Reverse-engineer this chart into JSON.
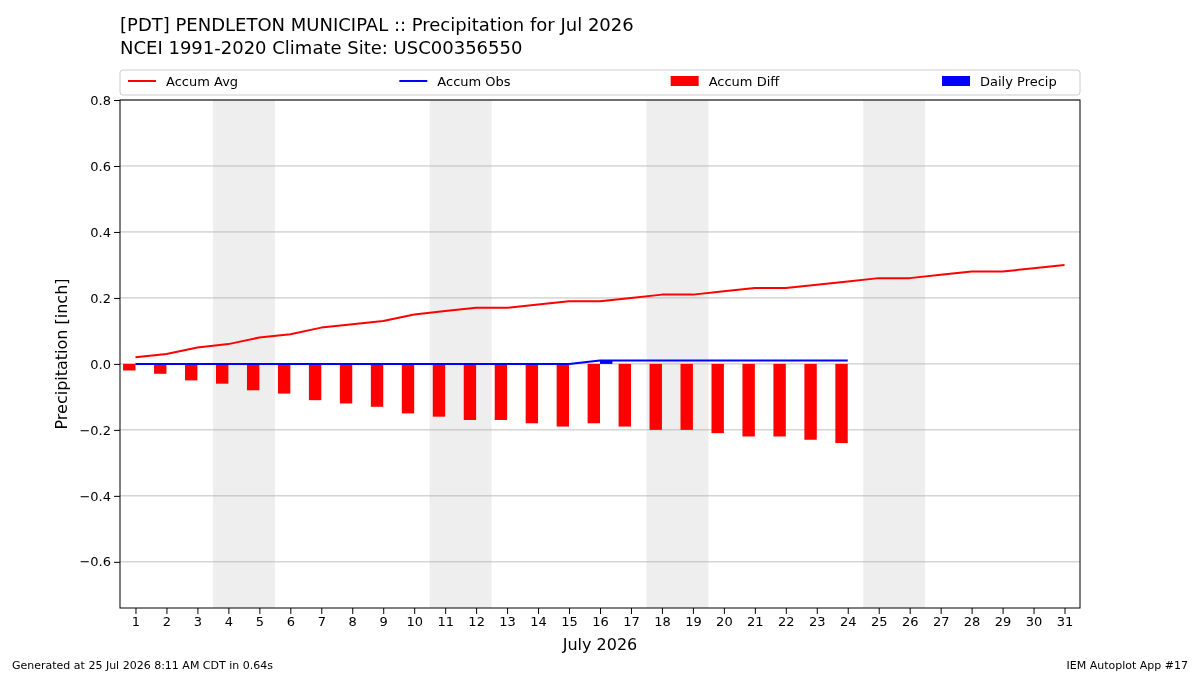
{
  "chart_data": {
    "type": "line",
    "title": "[PDT] PENDLETON MUNICIPAL :: Precipitation for Jul 2026",
    "subtitle": "NCEI 1991-2020 Climate Site: USC00356550",
    "xlabel": "July 2026",
    "ylabel": "Precipitation [inch]",
    "x": [
      1,
      2,
      3,
      4,
      5,
      6,
      7,
      8,
      9,
      10,
      11,
      12,
      13,
      14,
      15,
      16,
      17,
      18,
      19,
      20,
      21,
      22,
      23,
      24,
      25,
      26,
      27,
      28,
      29,
      30,
      31
    ],
    "series": [
      {
        "name": "Accum Avg",
        "color": "#ff0000",
        "values": [
          0.02,
          0.03,
          0.05,
          0.06,
          0.08,
          0.09,
          0.11,
          0.12,
          0.13,
          0.15,
          0.16,
          0.17,
          0.17,
          0.18,
          0.19,
          0.19,
          0.2,
          0.21,
          0.21,
          0.22,
          0.23,
          0.23,
          0.24,
          0.25,
          0.26,
          0.26,
          0.27,
          0.28,
          0.28,
          0.29,
          0.3
        ]
      },
      {
        "name": "Accum Obs",
        "color": "#0000ff",
        "values": [
          0,
          0,
          0,
          0,
          0,
          0,
          0,
          0,
          0,
          0,
          0,
          0,
          0,
          0,
          0,
          0.01,
          0.01,
          0.01,
          0.01,
          0.01,
          0.01,
          0.01,
          0.01,
          0.01,
          null,
          null,
          null,
          null,
          null,
          null,
          null
        ]
      },
      {
        "name": "Accum Diff",
        "type": "bar",
        "color": "#ff0000",
        "values": [
          -0.02,
          -0.03,
          -0.05,
          -0.06,
          -0.08,
          -0.09,
          -0.11,
          -0.12,
          -0.13,
          -0.15,
          -0.16,
          -0.17,
          -0.17,
          -0.18,
          -0.19,
          -0.18,
          -0.19,
          -0.2,
          -0.2,
          -0.21,
          -0.22,
          -0.22,
          -0.23,
          -0.24,
          null,
          null,
          null,
          null,
          null,
          null,
          null
        ]
      },
      {
        "name": "Daily Precip",
        "type": "bar",
        "color": "#0000ff",
        "values": [
          0,
          0,
          0,
          0,
          0,
          0,
          0,
          0,
          0,
          0,
          0,
          0,
          0,
          0,
          0,
          0.01,
          0,
          0,
          0,
          0,
          0,
          0,
          0,
          0,
          null,
          null,
          null,
          null,
          null,
          null,
          null
        ]
      }
    ],
    "xlim": [
      0.5,
      31.5
    ],
    "xticks": [
      1,
      2,
      3,
      4,
      5,
      6,
      7,
      8,
      9,
      10,
      11,
      12,
      13,
      14,
      15,
      16,
      17,
      18,
      19,
      20,
      21,
      22,
      23,
      24,
      25,
      26,
      27,
      28,
      29,
      30,
      31
    ],
    "ylim": [
      -0.74,
      0.8
    ],
    "yticks": [
      {
        "value": -0.6,
        "label": "−0.6"
      },
      {
        "value": -0.4,
        "label": "−0.4"
      },
      {
        "value": -0.2,
        "label": "−0.2"
      },
      {
        "value": 0,
        "label": "0.0"
      },
      {
        "value": 0.2,
        "label": "0.2"
      },
      {
        "value": 0.4,
        "label": "0.4"
      },
      {
        "value": 0.6,
        "label": "0.6"
      },
      {
        "value": 0.8,
        "label": "0.8"
      }
    ],
    "bands": [
      {
        "axis": "x",
        "from": 3.5,
        "to": 5.5,
        "color": "#eeeeee"
      },
      {
        "axis": "x",
        "from": 10.5,
        "to": 12.5,
        "color": "#eeeeee"
      },
      {
        "axis": "x",
        "from": 17.5,
        "to": 19.5,
        "color": "#eeeeee"
      },
      {
        "axis": "x",
        "from": 24.5,
        "to": 26.5,
        "color": "#eeeeee"
      }
    ],
    "grid": "y",
    "legend": "top",
    "marker": "none",
    "line_style": "solid",
    "annotations": [
      "Generated at 25 Jul 2026 8:11 AM CDT in 0.64s",
      "IEM Autoplot App #17"
    ]
  }
}
